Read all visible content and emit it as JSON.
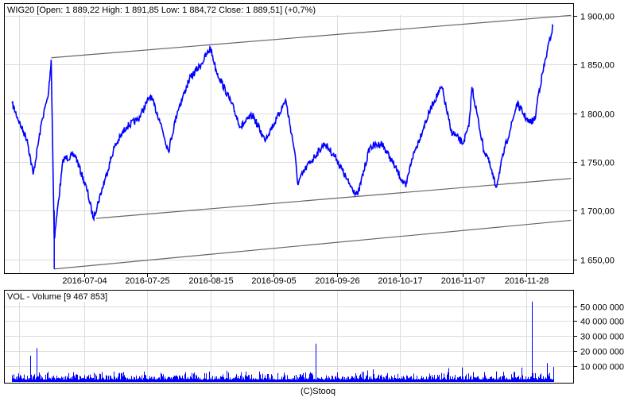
{
  "chart_data": [
    {
      "type": "line",
      "title": "WIG20 [Open: 1 889,22  High: 1 891,85  Low: 1 884,72  Close: 1 889,51] (+0,7%)",
      "ylim": [
        1635,
        1905
      ],
      "yticks": [
        {
          "value": 1900,
          "label": "1 900,00"
        },
        {
          "value": 1850,
          "label": "1 850,00"
        },
        {
          "value": 1800,
          "label": "1 800,00"
        },
        {
          "value": 1750,
          "label": "1 750,00"
        },
        {
          "value": 1700,
          "label": "1 700,00"
        },
        {
          "value": 1650,
          "label": "1 650,00"
        }
      ],
      "xticks": [
        "2016-07-04",
        "2016-07-25",
        "2016-08-15",
        "2016-09-05",
        "2016-09-26",
        "2016-10-17",
        "2016-11-07",
        "2016-11-28"
      ],
      "grid": true,
      "series_color": "#0000ff",
      "series": [
        {
          "points": [
            [
              "2016-06-10",
              1810
            ],
            [
              "2016-06-13",
              1786
            ],
            [
              "2016-06-15",
              1773
            ],
            [
              "2016-06-17",
              1737
            ],
            [
              "2016-06-20",
              1794
            ],
            [
              "2016-06-22",
              1818
            ],
            [
              "2016-06-23",
              1855
            ],
            [
              "2016-06-24",
              1671
            ],
            [
              "2016-06-27",
              1753
            ],
            [
              "2016-07-01",
              1757
            ],
            [
              "2016-07-05",
              1720
            ],
            [
              "2016-07-07",
              1692
            ],
            [
              "2016-07-11",
              1733
            ],
            [
              "2016-07-14",
              1765
            ],
            [
              "2016-07-18",
              1786
            ],
            [
              "2016-07-22",
              1794
            ],
            [
              "2016-07-26",
              1818
            ],
            [
              "2016-07-29",
              1794
            ],
            [
              "2016-08-01",
              1761
            ],
            [
              "2016-08-04",
              1802
            ],
            [
              "2016-08-08",
              1835
            ],
            [
              "2016-08-12",
              1851
            ],
            [
              "2016-08-15",
              1867
            ],
            [
              "2016-08-17",
              1843
            ],
            [
              "2016-08-22",
              1810
            ],
            [
              "2016-08-25",
              1786
            ],
            [
              "2016-08-29",
              1798
            ],
            [
              "2016-09-02",
              1773
            ],
            [
              "2016-09-06",
              1794
            ],
            [
              "2016-09-09",
              1814
            ],
            [
              "2016-09-12",
              1761
            ],
            [
              "2016-09-13",
              1728
            ],
            [
              "2016-09-16",
              1745
            ],
            [
              "2016-09-22",
              1769
            ],
            [
              "2016-09-26",
              1753
            ],
            [
              "2016-09-30",
              1728
            ],
            [
              "2016-10-03",
              1716
            ],
            [
              "2016-10-07",
              1765
            ],
            [
              "2016-10-11",
              1769
            ],
            [
              "2016-10-14",
              1753
            ],
            [
              "2016-10-19",
              1724
            ],
            [
              "2016-10-21",
              1753
            ],
            [
              "2016-10-25",
              1786
            ],
            [
              "2016-10-28",
              1810
            ],
            [
              "2016-10-31",
              1827
            ],
            [
              "2016-11-03",
              1782
            ],
            [
              "2016-11-07",
              1769
            ],
            [
              "2016-11-09",
              1786
            ],
            [
              "2016-11-10",
              1827
            ],
            [
              "2016-11-14",
              1761
            ],
            [
              "2016-11-15",
              1757
            ],
            [
              "2016-11-18",
              1724
            ],
            [
              "2016-11-21",
              1765
            ],
            [
              "2016-11-23",
              1786
            ],
            [
              "2016-11-25",
              1810
            ],
            [
              "2016-11-29",
              1790
            ],
            [
              "2016-12-01",
              1794
            ],
            [
              "2016-12-02",
              1818
            ],
            [
              "2016-12-05",
              1863
            ],
            [
              "2016-12-07",
              1889.51
            ]
          ],
          "low_spike": [
            "2016-06-24",
            1640
          ]
        }
      ],
      "trend_lines": [
        {
          "from": [
            "2016-06-23",
            1857
          ],
          "to": [
            "2016-12-13",
            1900.5
          ]
        },
        {
          "from": [
            "2016-07-08",
            1692
          ],
          "to": [
            "2016-12-13",
            1733
          ]
        },
        {
          "from": [
            "2016-06-24",
            1640
          ],
          "to": [
            "2016-12-13",
            1690
          ]
        }
      ]
    },
    {
      "type": "bar",
      "title": "VOL - Volume [9 467 853]",
      "ylim": [
        0,
        58000000
      ],
      "yticks": [
        {
          "value": 50000000,
          "label": "50 000 000"
        },
        {
          "value": 40000000,
          "label": "40 000 000"
        },
        {
          "value": 30000000,
          "label": "30 000 000"
        },
        {
          "value": 20000000,
          "label": "20 000 000"
        },
        {
          "value": 10000000,
          "label": "10 000 000"
        }
      ],
      "series_color": "#0000ff",
      "typical_range": [
        1000000,
        5000000
      ],
      "spikes": [
        [
          "2016-06-16",
          17000000
        ],
        [
          "2016-06-18",
          22000000
        ],
        [
          "2016-09-19",
          25000000
        ],
        [
          "2016-11-30",
          53000000
        ],
        [
          "2016-12-05",
          12000000
        ],
        [
          "2016-12-07",
          9467853
        ]
      ]
    }
  ],
  "footer": {
    "copyright": "(C)Stooq"
  }
}
